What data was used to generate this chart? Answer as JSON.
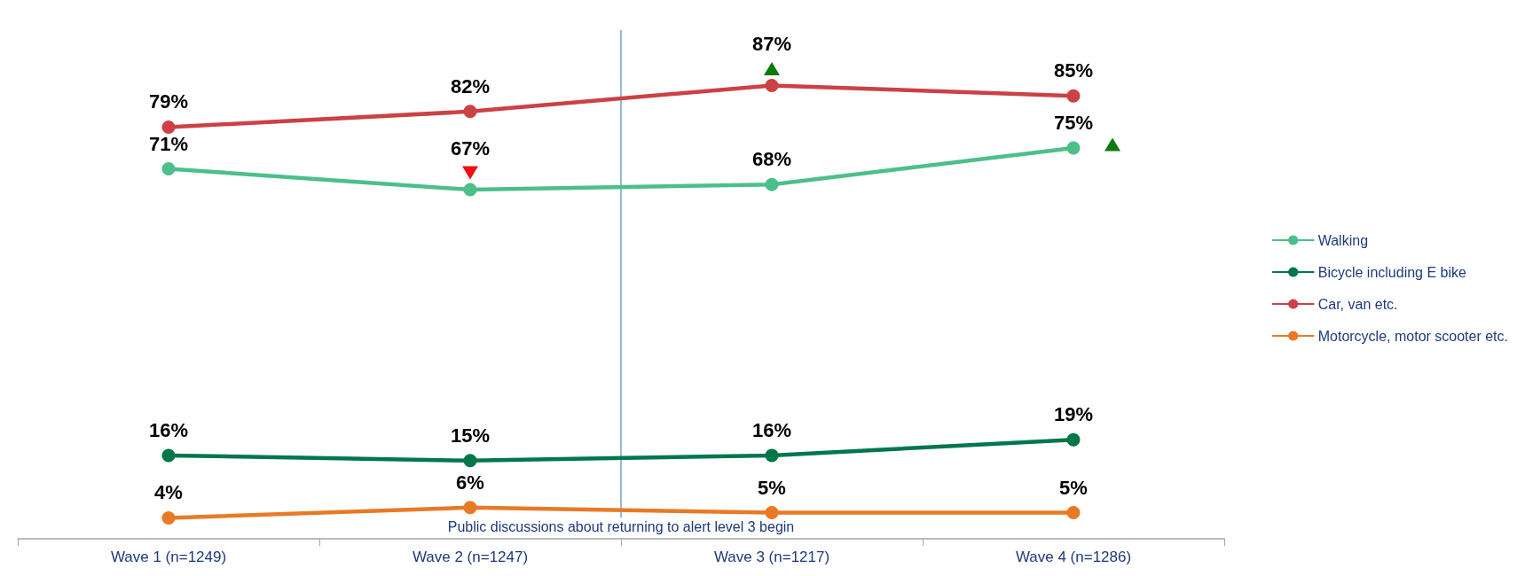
{
  "chart_data": {
    "type": "line",
    "categories": [
      "Wave 1 (n=1249)",
      "Wave 2 (n=1247)",
      "Wave 3 (n=1217)",
      "Wave 4 (n=1286)"
    ],
    "tick_labels": "x",
    "grid": false,
    "legend": "right",
    "marker": "circle",
    "line_style": "solid",
    "series": [
      {
        "name": "Walking",
        "color": "#4cbf8a",
        "values": [
          71,
          67,
          68,
          75
        ],
        "value_labels": [
          "71%",
          "67%",
          "68%",
          "75%"
        ]
      },
      {
        "name": "Bicycle including E bike",
        "color": "#00774a",
        "values": [
          16,
          15,
          16,
          19
        ],
        "value_labels": [
          "16%",
          "15%",
          "16%",
          "19%"
        ]
      },
      {
        "name": "Car, van etc.",
        "color": "#cc4144",
        "values": [
          79,
          82,
          87,
          85
        ],
        "value_labels": [
          "79%",
          "82%",
          "87%",
          "85%"
        ]
      },
      {
        "name": "Motorcycle, motor scooter etc.",
        "color": "#e87a26",
        "values": [
          4,
          6,
          5,
          5
        ],
        "value_labels": [
          "4%",
          "6%",
          "5%",
          "5%"
        ]
      }
    ],
    "ref_lines": [
      {
        "axis": "x",
        "value": "Wave 3 (n=1217)",
        "label": "Public discussions about returning to alert level 3 begin",
        "color": "#4a8fc6"
      }
    ]
  }
}
